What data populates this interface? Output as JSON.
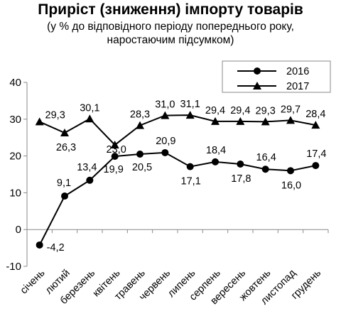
{
  "chart_data": {
    "type": "line",
    "title": "Приріст (зниження) імпорту товарів",
    "subtitle_lines": [
      "(у % до відповідного періоду попереднього року,",
      "наростаючим підсумком)"
    ],
    "categories": [
      "січень",
      "лютий",
      "березень",
      "квітень",
      "травень",
      "червень",
      "липень",
      "серпень",
      "вересень",
      "жовтень",
      "листопад",
      "грудень"
    ],
    "series": [
      {
        "name": "2016",
        "marker": "circle",
        "values": [
          -4.2,
          9.1,
          13.4,
          19.9,
          20.5,
          20.9,
          17.1,
          18.4,
          17.8,
          16.4,
          16.0,
          17.4
        ],
        "labels": [
          "-4,2",
          "9,1",
          "13,4",
          "19,9",
          "20,5",
          "20,9",
          "17,1",
          "18,4",
          "17,8",
          "16,4",
          "16,0",
          "17,4"
        ]
      },
      {
        "name": "2017",
        "marker": "triangle",
        "values": [
          29.3,
          26.3,
          30.1,
          23.0,
          28.3,
          31.0,
          31.1,
          29.4,
          29.4,
          29.3,
          29.7,
          28.4
        ],
        "labels": [
          "29,3",
          "26,3",
          "30,1",
          "23,0",
          "28,3",
          "31,0",
          "31,1",
          "29,4",
          "29,4",
          "29,3",
          "29,7",
          "28,4"
        ]
      }
    ],
    "ylim": [
      -10,
      40
    ],
    "yticks": [
      -10,
      0,
      10,
      20,
      30,
      40
    ],
    "grid": false,
    "legend": "top-right",
    "colors": {
      "line2016": "#000000",
      "line2017": "#000000",
      "axis": "#888888"
    }
  }
}
